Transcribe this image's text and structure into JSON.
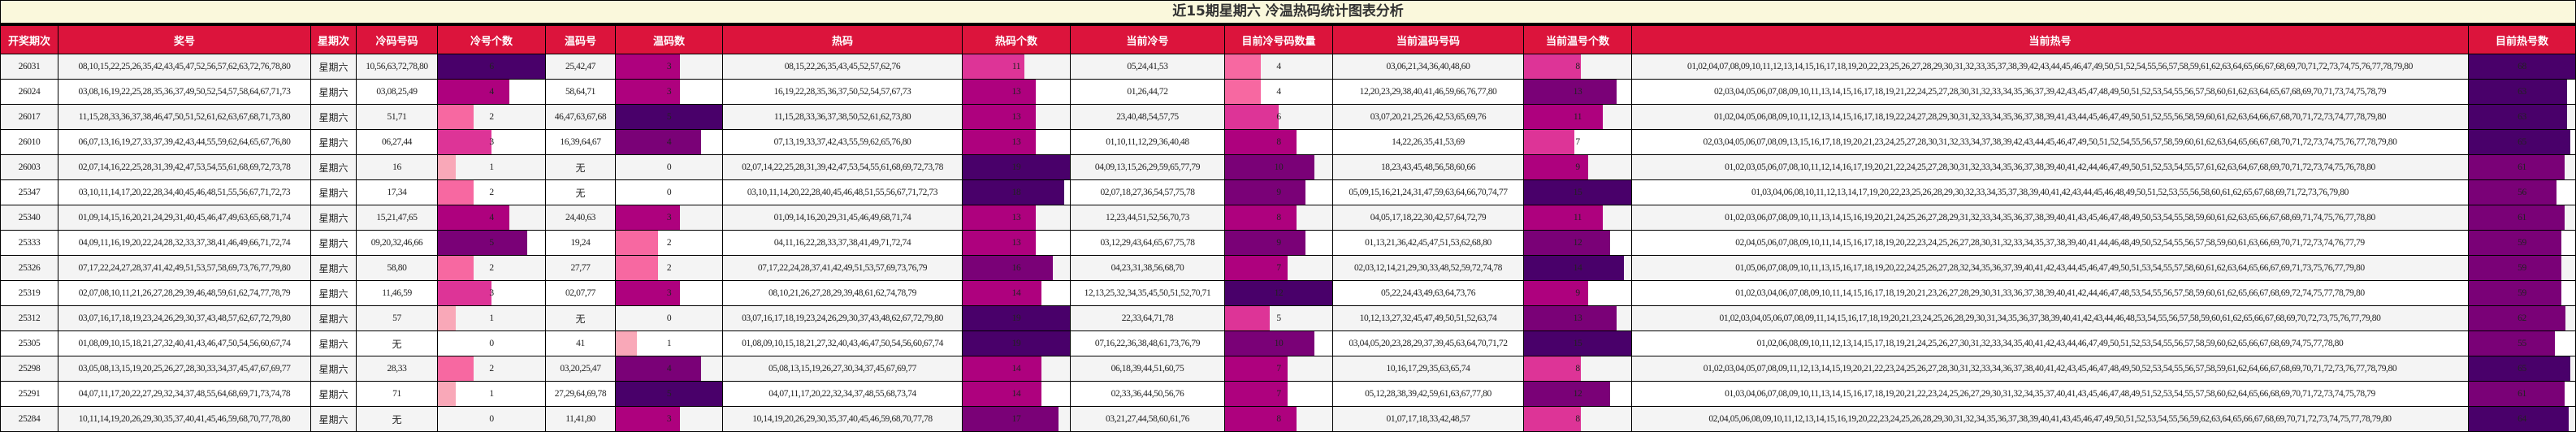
{
  "title": "近15期星期六 冷温热码统计图表分析",
  "colors": {
    "header_bg": "#dc143c",
    "title_bg": "#faf8dc",
    "bar_palette": [
      "#fcd5d5",
      "#f9a8b8",
      "#f768a1",
      "#dd3497",
      "#ae017e",
      "#7a0177",
      "#49006a"
    ]
  },
  "headers": [
    "开奖期次",
    "奖号",
    "星期次",
    "冷码号码",
    "冷号个数",
    "温码号",
    "温码数",
    "热码",
    "热码个数",
    "当前冷号",
    "目前冷号码数量",
    "当前温码号码",
    "当前温号个数",
    "当前热号",
    "目前热号数"
  ],
  "bar_max": {
    "cold_count": 6,
    "warm_count": 5,
    "hot_count": 19,
    "cur_cold_count": 12,
    "cur_warm_count": 15,
    "cur_hot_count": 68
  },
  "rows": [
    {
      "issue": "26031",
      "numbers": "08,10,15,22,25,26,35,42,43,45,47,52,56,57,62,63,72,76,78,80",
      "weekday": "星期六",
      "cold": "10,56,63,72,78,80",
      "cold_count": 6,
      "warm": "25,42,47",
      "warm_count": 3,
      "hot": "08,15,22,26,35,43,45,52,57,62,76",
      "hot_count": 11,
      "cur_cold": "05,24,41,53",
      "cur_cold_count": 4,
      "cur_warm": "03,06,21,34,36,40,48,60",
      "cur_warm_count": 8,
      "cur_hot": "01,02,04,07,08,09,10,11,12,13,14,15,16,17,18,19,20,22,23,25,26,27,28,29,30,31,32,33,35,37,38,39,42,43,44,45,46,47,49,50,51,52,54,55,56,57,58,59,61,62,63,64,65,66,67,68,69,70,71,72,73,74,75,76,77,78,79,80",
      "cur_hot_count": 68
    },
    {
      "issue": "26024",
      "numbers": "03,08,16,19,22,25,28,35,36,37,49,50,52,54,57,58,64,67,71,73",
      "weekday": "星期六",
      "cold": "03,08,25,49",
      "cold_count": 4,
      "warm": "58,64,71",
      "warm_count": 3,
      "hot": "16,19,22,28,35,36,37,50,52,54,57,67,73",
      "hot_count": 13,
      "cur_cold": "01,26,44,72",
      "cur_cold_count": 4,
      "cur_warm": "12,20,23,29,38,40,41,46,59,66,76,77,80",
      "cur_warm_count": 13,
      "cur_hot": "02,03,04,05,06,07,08,09,10,11,13,14,15,16,17,18,19,21,22,24,25,27,28,30,31,32,33,34,35,36,37,39,42,43,45,47,48,49,50,51,52,53,54,55,56,57,58,60,61,62,63,64,65,67,68,69,70,71,73,74,75,78,79",
      "cur_hot_count": 63
    },
    {
      "issue": "26017",
      "numbers": "11,15,28,33,36,37,38,46,47,50,51,52,61,62,63,67,68,71,73,80",
      "weekday": "星期六",
      "cold": "51,71",
      "cold_count": 2,
      "warm": "46,47,63,67,68",
      "warm_count": 5,
      "hot": "11,15,28,33,36,37,38,50,52,61,62,73,80",
      "hot_count": 13,
      "cur_cold": "23,40,48,54,57,75",
      "cur_cold_count": 6,
      "cur_warm": "03,07,20,21,25,26,42,53,65,69,76",
      "cur_warm_count": 11,
      "cur_hot": "01,02,04,05,06,08,09,10,11,12,13,14,15,16,17,18,19,22,24,27,28,29,30,31,32,33,34,35,36,37,38,39,41,43,44,45,46,47,49,50,51,52,55,56,58,59,60,61,62,63,64,66,67,68,70,71,72,73,74,77,78,79,80",
      "cur_hot_count": 63
    },
    {
      "issue": "26010",
      "numbers": "06,07,13,16,19,27,33,37,39,42,43,44,55,59,62,64,65,67,76,80",
      "weekday": "星期六",
      "cold": "06,27,44",
      "cold_count": 3,
      "warm": "16,39,64,67",
      "warm_count": 4,
      "hot": "07,13,19,33,37,42,43,55,59,62,65,76,80",
      "hot_count": 13,
      "cur_cold": "01,10,11,12,29,36,40,48",
      "cur_cold_count": 8,
      "cur_warm": "14,22,26,35,41,53,69",
      "cur_warm_count": 7,
      "cur_hot": "02,03,04,05,06,07,08,09,13,15,16,17,18,19,20,21,23,24,25,27,28,30,31,32,33,34,37,38,39,42,43,44,45,46,47,49,50,51,52,54,55,56,57,58,59,60,61,62,63,64,65,66,67,68,70,71,72,73,74,75,76,77,78,79,80",
      "cur_hot_count": 65
    },
    {
      "issue": "26003",
      "numbers": "02,07,14,16,22,25,28,31,39,42,47,53,54,55,61,68,69,72,73,78",
      "weekday": "星期六",
      "cold": "16",
      "cold_count": 1,
      "warm": "无",
      "warm_count": 0,
      "hot": "02,07,14,22,25,28,31,39,42,47,53,54,55,61,68,69,72,73,78",
      "hot_count": 19,
      "cur_cold": "04,09,13,15,26,29,59,65,77,79",
      "cur_cold_count": 10,
      "cur_warm": "18,23,43,45,48,56,58,60,66",
      "cur_warm_count": 9,
      "cur_hot": "01,02,03,05,06,07,08,10,11,12,14,16,17,19,20,21,22,24,25,27,28,30,31,32,33,34,35,36,37,38,39,40,41,42,44,46,47,49,50,51,52,53,54,55,57,61,62,63,64,67,68,69,70,71,72,73,74,75,76,78,80",
      "cur_hot_count": 61
    },
    {
      "issue": "25347",
      "numbers": "03,10,11,14,17,20,22,28,34,40,45,46,48,51,55,56,67,71,72,73",
      "weekday": "星期六",
      "cold": "17,34",
      "cold_count": 2,
      "warm": "无",
      "warm_count": 0,
      "hot": "03,10,11,14,20,22,28,40,45,46,48,51,55,56,67,71,72,73",
      "hot_count": 18,
      "cur_cold": "02,07,18,27,36,54,57,75,78",
      "cur_cold_count": 9,
      "cur_warm": "05,09,15,16,21,24,31,47,59,63,64,66,70,74,77",
      "cur_warm_count": 15,
      "cur_hot": "01,03,04,06,08,10,11,12,13,14,17,19,20,22,23,25,26,28,29,30,32,33,34,35,37,38,39,40,41,42,43,44,45,46,48,49,50,51,52,53,55,56,58,60,61,62,65,67,68,69,71,72,73,76,79,80",
      "cur_hot_count": 56
    },
    {
      "issue": "25340",
      "numbers": "01,09,14,15,16,20,21,24,29,31,40,45,46,47,49,63,65,68,71,74",
      "weekday": "星期六",
      "cold": "15,21,47,65",
      "cold_count": 4,
      "warm": "24,40,63",
      "warm_count": 3,
      "hot": "01,09,14,16,20,29,31,45,46,49,68,71,74",
      "hot_count": 13,
      "cur_cold": "12,23,44,51,52,56,70,73",
      "cur_cold_count": 8,
      "cur_warm": "04,05,17,18,22,30,42,57,64,72,79",
      "cur_warm_count": 11,
      "cur_hot": "01,02,03,06,07,08,09,10,11,13,14,15,16,19,20,21,24,25,26,27,28,29,31,32,33,34,35,36,37,38,39,40,41,43,45,46,47,48,49,50,53,54,55,58,59,60,61,62,63,65,66,67,68,69,71,74,75,76,77,78,80",
      "cur_hot_count": 61
    },
    {
      "issue": "25333",
      "numbers": "04,09,11,16,19,20,22,24,28,32,33,37,38,41,46,49,66,71,72,74",
      "weekday": "星期六",
      "cold": "09,20,32,46,66",
      "cold_count": 5,
      "warm": "19,24",
      "warm_count": 2,
      "hot": "04,11,16,22,28,33,37,38,41,49,71,72,74",
      "hot_count": 13,
      "cur_cold": "03,12,29,43,64,65,67,75,78",
      "cur_cold_count": 9,
      "cur_warm": "01,13,21,36,42,45,47,51,53,62,68,80",
      "cur_warm_count": 12,
      "cur_hot": "02,04,05,06,07,08,09,10,11,14,15,16,17,18,19,20,22,23,24,25,26,27,28,30,31,32,33,34,35,37,38,39,40,41,44,46,48,49,50,52,54,55,56,57,58,59,60,61,63,66,69,70,71,72,73,74,76,77,79",
      "cur_hot_count": 59
    },
    {
      "issue": "25326",
      "numbers": "07,17,22,24,27,28,37,41,42,49,51,53,57,58,69,73,76,77,79,80",
      "weekday": "星期六",
      "cold": "58,80",
      "cold_count": 2,
      "warm": "27,77",
      "warm_count": 2,
      "hot": "07,17,22,24,28,37,41,42,49,51,53,57,69,73,76,79",
      "hot_count": 16,
      "cur_cold": "04,23,31,38,56,68,70",
      "cur_cold_count": 7,
      "cur_warm": "02,03,12,14,21,29,30,33,48,52,59,72,74,78",
      "cur_warm_count": 14,
      "cur_hot": "01,05,06,07,08,09,10,11,13,15,16,17,18,19,20,22,24,25,26,27,28,32,34,35,36,37,39,40,41,42,43,44,45,46,47,49,50,51,53,54,55,57,58,60,61,62,63,64,65,66,67,69,71,73,75,76,77,79,80",
      "cur_hot_count": 59
    },
    {
      "issue": "25319",
      "numbers": "02,07,08,10,11,21,26,27,28,29,39,46,48,59,61,62,74,77,78,79",
      "weekday": "星期六",
      "cold": "11,46,59",
      "cold_count": 3,
      "warm": "02,07,77",
      "warm_count": 3,
      "hot": "08,10,21,26,27,28,29,39,48,61,62,74,78,79",
      "hot_count": 14,
      "cur_cold": "12,13,25,32,34,35,45,50,51,52,70,71",
      "cur_cold_count": 12,
      "cur_warm": "05,22,24,43,49,63,64,73,76",
      "cur_warm_count": 9,
      "cur_hot": "01,02,03,04,06,07,08,09,10,11,14,15,16,17,18,19,20,21,23,26,27,28,29,30,31,33,36,37,38,39,40,41,42,44,46,47,48,53,54,55,56,57,58,59,60,61,62,65,66,67,68,69,72,74,75,77,78,79,80",
      "cur_hot_count": 59
    },
    {
      "issue": "25312",
      "numbers": "03,07,16,17,18,19,23,24,26,29,30,37,43,48,57,62,67,72,79,80",
      "weekday": "星期六",
      "cold": "57",
      "cold_count": 1,
      "warm": "无",
      "warm_count": 0,
      "hot": "03,07,16,17,18,19,23,24,26,29,30,37,43,48,62,67,72,79,80",
      "hot_count": 19,
      "cur_cold": "22,33,64,71,78",
      "cur_cold_count": 5,
      "cur_warm": "10,12,13,27,32,45,47,49,50,51,52,63,74",
      "cur_warm_count": 13,
      "cur_hot": "01,02,03,04,05,06,07,08,09,11,14,15,16,17,18,19,20,21,23,24,25,26,28,29,30,31,34,35,36,37,38,39,40,41,42,43,44,46,48,53,54,55,56,57,58,59,60,61,62,65,66,67,68,69,70,72,73,75,76,77,79,80",
      "cur_hot_count": 62
    },
    {
      "issue": "25305",
      "numbers": "01,08,09,10,15,18,21,27,32,40,41,43,46,47,50,54,56,60,67,74",
      "weekday": "星期六",
      "cold": "无",
      "cold_count": 0,
      "warm": "41",
      "warm_count": 1,
      "hot": "01,08,09,10,15,18,21,27,32,40,43,46,47,50,54,56,60,67,74",
      "hot_count": 19,
      "cur_cold": "07,16,22,36,38,48,61,73,76,79",
      "cur_cold_count": 10,
      "cur_warm": "03,04,05,20,23,28,29,37,39,45,63,64,70,71,72",
      "cur_warm_count": 15,
      "cur_hot": "01,02,06,08,09,10,11,12,13,14,15,17,18,19,21,24,25,26,27,30,31,32,33,34,35,40,41,42,43,44,46,47,49,50,51,52,53,54,55,56,57,58,59,60,62,65,66,67,68,69,74,75,77,78,80",
      "cur_hot_count": 55
    },
    {
      "issue": "25298",
      "numbers": "03,05,08,13,15,19,20,25,26,27,28,30,33,34,37,45,47,67,69,77",
      "weekday": "星期六",
      "cold": "28,33",
      "cold_count": 2,
      "warm": "03,20,25,47",
      "warm_count": 4,
      "hot": "05,08,13,15,19,26,27,30,34,37,45,67,69,77",
      "hot_count": 14,
      "cur_cold": "06,18,39,44,51,60,75",
      "cur_cold_count": 7,
      "cur_warm": "10,16,17,29,35,63,65,74",
      "cur_warm_count": 8,
      "cur_hot": "01,02,03,04,05,07,08,09,11,12,13,14,15,19,20,21,22,23,24,25,26,27,28,30,31,32,33,34,36,37,38,40,41,42,43,45,46,47,48,49,50,52,53,54,55,56,57,58,59,61,62,64,66,67,68,69,70,71,72,73,76,77,78,79,80",
      "cur_hot_count": 65
    },
    {
      "issue": "25291",
      "numbers": "04,07,11,17,20,22,27,29,32,34,37,48,55,64,68,69,71,73,74,78",
      "weekday": "星期六",
      "cold": "71",
      "cold_count": 1,
      "warm": "27,29,64,69,78",
      "warm_count": 5,
      "hot": "04,07,11,17,20,22,32,34,37,48,55,68,73,74",
      "hot_count": 14,
      "cur_cold": "02,33,36,44,50,56,76",
      "cur_cold_count": 7,
      "cur_warm": "05,12,28,38,39,42,59,61,63,67,77,80",
      "cur_warm_count": 12,
      "cur_hot": "01,03,04,06,07,08,09,10,11,13,14,15,16,17,18,19,20,21,22,23,24,25,26,27,29,30,31,32,34,35,37,40,41,43,45,46,47,48,49,51,52,53,54,55,57,58,60,62,64,65,66,68,69,70,71,72,73,74,75,78,79",
      "cur_hot_count": 61
    },
    {
      "issue": "25284",
      "numbers": "10,11,14,19,20,26,29,30,35,37,40,41,45,46,59,68,70,77,78,80",
      "weekday": "星期六",
      "cold": "无",
      "cold_count": 0,
      "warm": "11,41,80",
      "warm_count": 3,
      "hot": "10,14,19,20,26,29,30,35,37,40,45,46,59,68,70,77,78",
      "hot_count": 17,
      "cur_cold": "03,21,27,44,58,60,61,76",
      "cur_cold_count": 8,
      "cur_warm": "01,07,17,18,33,42,48,57",
      "cur_warm_count": 8,
      "cur_hot": "02,04,05,06,08,09,10,11,12,13,14,15,16,19,20,22,23,24,25,26,28,29,30,31,32,34,35,36,37,38,39,40,41,43,45,46,47,49,50,51,52,53,54,55,56,59,62,63,64,65,66,67,68,69,70,71,72,73,74,75,77,78,79,80",
      "cur_hot_count": 64
    }
  ]
}
